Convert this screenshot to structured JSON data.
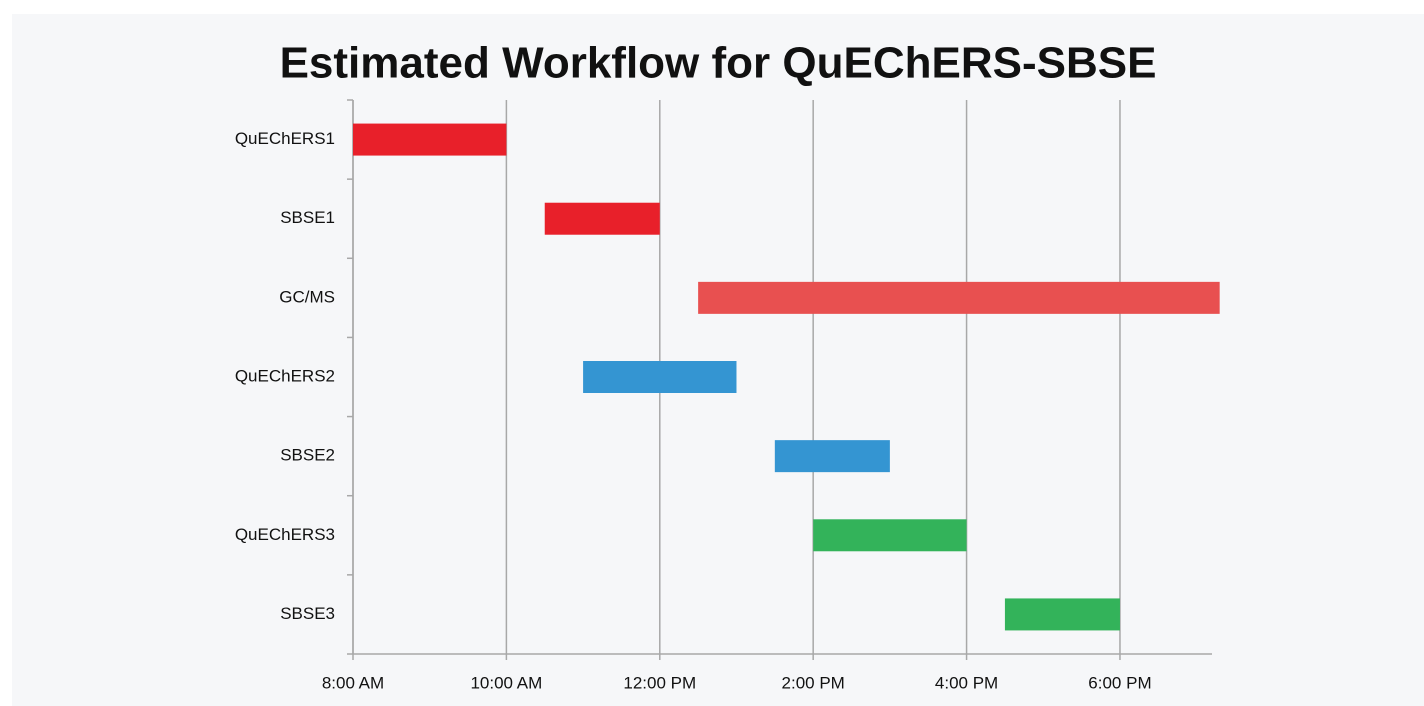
{
  "chart_data": {
    "type": "gantt",
    "title": "Estimated Workflow for QuEChERS-SBSE",
    "categories": [
      "QuEChERS1",
      "SBSE1",
      "GC/MS",
      "QuEChERS2",
      "SBSE2",
      "QuEChERS3",
      "SBSE3"
    ],
    "start": [
      8,
      10.5,
      12.5,
      11,
      13.5,
      14,
      16.5
    ],
    "end": [
      10,
      12,
      19.3,
      13,
      15,
      16,
      18
    ],
    "colors": [
      "#e8202a",
      "#e8202a",
      "#e85050",
      "#3495d2",
      "#3495d2",
      "#33b35a",
      "#33b35a"
    ],
    "xlim": [
      8,
      19.2
    ],
    "xticks": [
      {
        "value": 8,
        "label": "8:00 AM"
      },
      {
        "value": 10,
        "label": "10:00 AM"
      },
      {
        "value": 12,
        "label": "12:00 PM"
      },
      {
        "value": 14,
        "label": "2:00 PM"
      },
      {
        "value": 16,
        "label": "4:00 PM"
      },
      {
        "value": 18,
        "label": "6:00 PM"
      }
    ],
    "grid": true
  }
}
